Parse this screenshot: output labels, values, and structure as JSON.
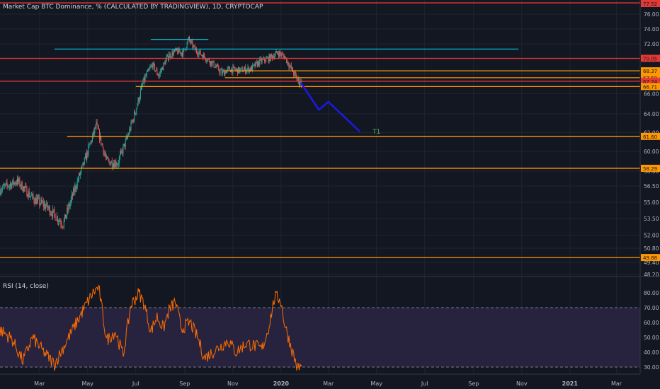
{
  "header": {
    "title": "Market Cap BTC Dominance, % (CALCULATED BY TRADINGVIEW), 1D, CRYPTOCAP"
  },
  "rsi": {
    "title": "RSI (14, close)"
  },
  "colors": {
    "background": "#131722",
    "grid": "#1f2431",
    "axis_text": "#b2b5be",
    "up_candle": "#26a69a",
    "down_candle": "#ef5350",
    "cyan_line": "#00bcd4",
    "red_line": "#e53935",
    "orange_line": "#ff9800",
    "projection": "#1a1ae6",
    "target_label": "#4caf50",
    "rsi_line": "#ff6d00",
    "rsi_band": "#2a2340"
  },
  "chart_data": [
    {
      "type": "candlestick",
      "title": "Market Cap BTC Dominance, % (CALCULATED BY TRADINGVIEW), 1D, CRYPTOCAP",
      "x_tick_labels": [
        "Mar",
        "May",
        "Jul",
        "Sep",
        "Nov",
        "2020",
        "Mar",
        "May",
        "Jul",
        "Sep",
        "Nov",
        "2021",
        "Mar"
      ],
      "y_tick_labels": [
        "76.00",
        "74.00",
        "72.00",
        "70.00",
        "68.00",
        "66.00",
        "64.00",
        "62.00",
        "60.00",
        "58.00",
        "56.50",
        "55.00",
        "53.50",
        "52.00",
        "50.80",
        "49.40",
        "48.20"
      ],
      "ylim": [
        47.6,
        77.4
      ],
      "grid": true,
      "price_markers": [
        {
          "label": "77.52",
          "value": 77.52,
          "color": "#e53935"
        },
        {
          "label": "70.05",
          "value": 70.05,
          "color": "#e53935"
        },
        {
          "label": "68.37",
          "value": 68.37,
          "color": "#ff9800"
        },
        {
          "label": "67.59",
          "value": 67.59,
          "color": "#ff9800"
        },
        {
          "label": "67.24",
          "value": 67.24,
          "color": "#e53935"
        },
        {
          "label": "66.71",
          "value": 66.71,
          "color": "#ff9800"
        },
        {
          "label": "61.60",
          "value": 61.6,
          "color": "#ff9800"
        },
        {
          "label": "58.29",
          "value": 58.29,
          "color": "#ff9800"
        },
        {
          "label": "49.88",
          "value": 49.88,
          "color": "#ff9800"
        }
      ],
      "horizontal_lines": [
        {
          "value": 77.52,
          "color": "#e53935",
          "x_from": "2019-01-10",
          "x_to": "2021-03-31"
        },
        {
          "value": 72.6,
          "color": "#00bcd4",
          "x_from": "2019-07-20",
          "x_to": "2019-10-01"
        },
        {
          "value": 71.3,
          "color": "#00bcd4",
          "x_from": "2019-03-20",
          "x_to": "2020-10-28"
        },
        {
          "value": 70.05,
          "color": "#e53935",
          "x_from": "2019-01-10",
          "x_to": "2021-03-31"
        },
        {
          "value": 68.37,
          "color": "#ff9800",
          "x_from": "2019-10-22",
          "x_to": "2021-03-31"
        },
        {
          "value": 67.59,
          "color": "#ff9800",
          "x_from": "2019-10-22",
          "x_to": "2021-03-31"
        },
        {
          "value": 67.24,
          "color": "#e53935",
          "x_from": "2019-01-10",
          "x_to": "2021-03-31"
        },
        {
          "value": 66.71,
          "color": "#ff9800",
          "x_from": "2019-07-01",
          "x_to": "2021-03-31"
        },
        {
          "value": 61.6,
          "color": "#ff9800",
          "x_from": "2019-04-05",
          "x_to": "2021-03-31"
        },
        {
          "value": 58.29,
          "color": "#ff9800",
          "x_from": "2019-01-10",
          "x_to": "2021-03-31"
        },
        {
          "value": 49.88,
          "color": "#ff9800",
          "x_from": "2019-01-10",
          "x_to": "2021-03-31"
        }
      ],
      "projection": {
        "color": "#1a1ae6",
        "points": [
          [
            "2020-01-26",
            67.1
          ],
          [
            "2020-02-18",
            64.4
          ],
          [
            "2020-03-01",
            65.2
          ],
          [
            "2020-04-10",
            62.1
          ]
        ]
      },
      "annotations": [
        {
          "text": "T1",
          "x": "2020-04-26",
          "y": 62.1,
          "color": "#4caf50"
        }
      ],
      "anchors": [
        [
          "2019-01-10",
          56.2
        ],
        [
          "2019-02-01",
          57.0
        ],
        [
          "2019-02-20",
          55.4
        ],
        [
          "2019-03-10",
          54.6
        ],
        [
          "2019-03-31",
          53.0
        ],
        [
          "2019-04-15",
          56.3
        ],
        [
          "2019-04-28",
          59.2
        ],
        [
          "2019-05-12",
          62.8
        ],
        [
          "2019-05-25",
          59.0
        ],
        [
          "2019-06-08",
          58.8
        ],
        [
          "2019-06-20",
          61.4
        ],
        [
          "2019-07-01",
          64.4
        ],
        [
          "2019-07-10",
          67.0
        ],
        [
          "2019-07-22",
          69.2
        ],
        [
          "2019-07-30",
          67.8
        ],
        [
          "2019-08-10",
          70.2
        ],
        [
          "2019-08-20",
          71.0
        ],
        [
          "2019-08-30",
          70.8
        ],
        [
          "2019-09-06",
          72.6
        ],
        [
          "2019-09-14",
          71.2
        ],
        [
          "2019-09-24",
          70.4
        ],
        [
          "2019-10-06",
          69.4
        ],
        [
          "2019-10-18",
          68.1
        ],
        [
          "2019-10-28",
          68.6
        ],
        [
          "2019-11-10",
          68.4
        ],
        [
          "2019-11-25",
          68.7
        ],
        [
          "2019-12-05",
          69.6
        ],
        [
          "2019-12-16",
          70.0
        ],
        [
          "2019-12-28",
          70.8
        ],
        [
          "2020-01-06",
          70.2
        ],
        [
          "2020-01-14",
          68.6
        ],
        [
          "2020-01-22",
          67.3
        ],
        [
          "2020-01-27",
          67.1
        ]
      ]
    },
    {
      "type": "line",
      "title": "RSI (14, close)",
      "y_tick_labels": [
        "80.00",
        "70.00",
        "60.00",
        "50.00",
        "40.00",
        "30.00"
      ],
      "ylim": [
        25,
        87
      ],
      "band": [
        30,
        70
      ],
      "anchors": [
        [
          "2019-01-10",
          55
        ],
        [
          "2019-01-25",
          49
        ],
        [
          "2019-02-08",
          34
        ],
        [
          "2019-02-20",
          50
        ],
        [
          "2019-03-05",
          41
        ],
        [
          "2019-03-20",
          32
        ],
        [
          "2019-04-05",
          48
        ],
        [
          "2019-04-15",
          58
        ],
        [
          "2019-04-28",
          71
        ],
        [
          "2019-05-08",
          80
        ],
        [
          "2019-05-15",
          84
        ],
        [
          "2019-05-25",
          48
        ],
        [
          "2019-06-05",
          54
        ],
        [
          "2019-06-15",
          38
        ],
        [
          "2019-06-25",
          72
        ],
        [
          "2019-07-05",
          80
        ],
        [
          "2019-07-12",
          72
        ],
        [
          "2019-07-20",
          54
        ],
        [
          "2019-07-28",
          64
        ],
        [
          "2019-08-05",
          56
        ],
        [
          "2019-08-12",
          68
        ],
        [
          "2019-08-20",
          74
        ],
        [
          "2019-08-28",
          56
        ],
        [
          "2019-09-08",
          60
        ],
        [
          "2019-09-18",
          49
        ],
        [
          "2019-09-26",
          36
        ],
        [
          "2019-10-06",
          40
        ],
        [
          "2019-10-16",
          44
        ],
        [
          "2019-10-26",
          48
        ],
        [
          "2019-11-05",
          40
        ],
        [
          "2019-11-18",
          46
        ],
        [
          "2019-11-30",
          44
        ],
        [
          "2019-12-08",
          42
        ],
        [
          "2019-12-16",
          56
        ],
        [
          "2019-12-24",
          77
        ],
        [
          "2019-12-31",
          76
        ],
        [
          "2020-01-06",
          58
        ],
        [
          "2020-01-12",
          47
        ],
        [
          "2020-01-18",
          36
        ],
        [
          "2020-01-22",
          29
        ],
        [
          "2020-01-27",
          31
        ]
      ]
    }
  ]
}
